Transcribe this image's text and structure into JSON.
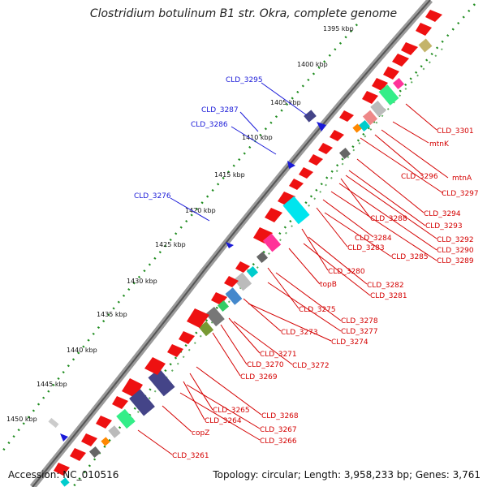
{
  "title": "Clostridium botulinum B1 str. Okra, complete genome",
  "footer": {
    "accession": "Accession: NC_010516",
    "topology": "Topology: circular; Length: 3,958,233 bp; Genes: 3,761"
  },
  "colors": {
    "backbone": "#777777",
    "gene_red": "#ee1111",
    "label_red": "#d40000",
    "label_blue": "#1a1ad8",
    "tick_green": "#1f8c1f"
  },
  "kbp_ticks": [
    "1395 kbp",
    "1400 kbp",
    "1405 kbp",
    "1410 kbp",
    "1415 kbp",
    "1420 kbp",
    "1425 kbp",
    "1430 kbp",
    "1435 kbp",
    "1440 kbp",
    "1445 kbp",
    "1450 kbp"
  ],
  "labels_red": [
    "CLD_3301",
    "mtnK",
    "CLD_3296",
    "mtnA",
    "CLD_3297",
    "CLD_3294",
    "CLD_3293",
    "CLD_3288",
    "CLD_3292",
    "CLD_3290",
    "CLD_3289",
    "CLD_3284",
    "CLD_3283",
    "CLD_3285",
    "CLD_3280",
    "topB",
    "CLD_3282",
    "CLD_3281",
    "CLD_3275",
    "CLD_3278",
    "CLD_3277",
    "CLD_3273",
    "CLD_3274",
    "CLD_3271",
    "CLD_3270",
    "CLD_3272",
    "CLD_3269",
    "CLD_3265",
    "CLD_3268",
    "CLD_3264",
    "CLD_3267",
    "copZ",
    "CLD_3266",
    "CLD_3261"
  ],
  "labels_blue": [
    "CLD_3295",
    "CLD_3287",
    "CLD_3286",
    "CLD_3276"
  ]
}
